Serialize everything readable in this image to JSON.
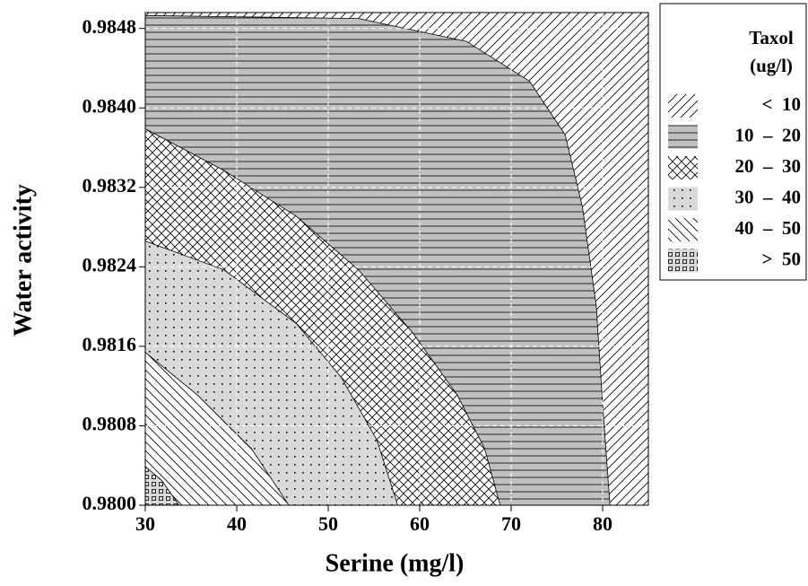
{
  "chart_data": {
    "type": "contour",
    "xlabel": "Serine (mg/l)",
    "ylabel": "Water activity",
    "legend_title": "Taxol",
    "legend_subtitle": "(ug/l)",
    "xlim": [
      30,
      85
    ],
    "ylim": [
      0.98,
      0.98496
    ],
    "xticks": [
      30,
      40,
      50,
      60,
      70,
      80
    ],
    "yticks": [
      {
        "value": 0.98,
        "label": "0.9800"
      },
      {
        "value": 0.9808,
        "label": "0.9808"
      },
      {
        "value": 0.9816,
        "label": "0.9816"
      },
      {
        "value": 0.9824,
        "label": "0.9824"
      },
      {
        "value": 0.9832,
        "label": "0.9832"
      },
      {
        "value": 0.984,
        "label": "0.9840"
      },
      {
        "value": 0.9848,
        "label": "0.9848"
      }
    ],
    "grid": true,
    "series": [
      {
        "name": "<  10",
        "color": "#ffffff",
        "hatch": "forward"
      },
      {
        "name": "10  –  20",
        "color": "#c0c0c0",
        "hatch": "horizontal",
        "x": [
          30.3,
          53.3,
          65.1,
          72.0,
          75.9,
          77.8,
          79.3,
          80.0,
          80.8
        ],
        "y": [
          0.98493,
          0.9849,
          0.98467,
          0.98427,
          0.98373,
          0.983,
          0.98201,
          0.98102,
          0.98
        ]
      },
      {
        "name": "20  –  30",
        "color": "#ffffff",
        "hatch": "cross",
        "x": [
          30,
          38.6,
          46.5,
          53.3,
          59.2,
          64.1,
          67.1,
          68.8
        ],
        "y": [
          0.98379,
          0.98337,
          0.98291,
          0.98237,
          0.98174,
          0.98111,
          0.98057,
          0.98
        ]
      },
      {
        "name": "30  –  40",
        "color": "#d9d9d9",
        "hatch": "dots",
        "x": [
          30,
          38.6,
          46.5,
          51.4,
          55.3,
          57.6
        ],
        "y": [
          0.98266,
          0.98237,
          0.98183,
          0.98129,
          0.98066,
          0.98
        ]
      },
      {
        "name": "40  –  50",
        "color": "#ffffff",
        "hatch": "backward",
        "x": [
          30,
          35.7,
          41.6,
          45.7
        ],
        "y": [
          0.98154,
          0.98111,
          0.98057,
          0.98
        ]
      },
      {
        "name": ">  50",
        "color": "#d9d9d9",
        "hatch": "squares",
        "x": [
          30,
          31.8,
          33.7
        ],
        "y": [
          0.98039,
          0.98025,
          0.98
        ]
      }
    ]
  }
}
